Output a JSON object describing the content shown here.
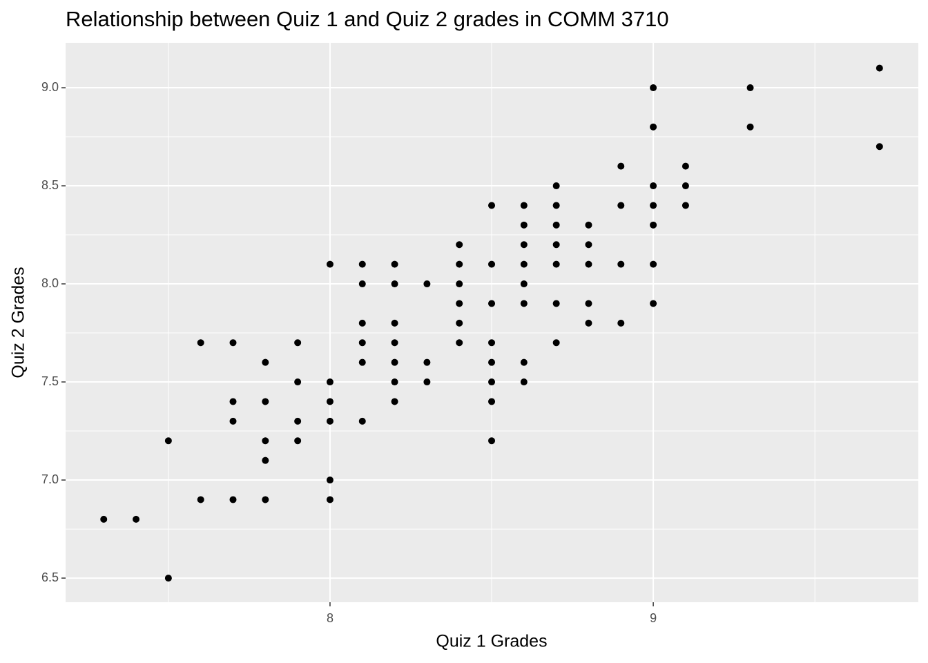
{
  "chart_data": {
    "type": "scatter",
    "title": "Relationship between Quiz 1 and Quiz 2 grades in COMM 3710",
    "x_label": "Quiz 1 Grades",
    "y_label": "Quiz 2 Grades",
    "color": "#000000",
    "grid": true,
    "xlim": [
      7.182,
      9.82
    ],
    "ylim": [
      6.377,
      9.229
    ],
    "xticks": [
      8,
      9
    ],
    "yticks": [
      6.5,
      {
        "value": 7.0,
        "label": "7.0"
      },
      7.5,
      {
        "value": 8.0,
        "label": "8.0"
      },
      8.5,
      {
        "value": 9.0,
        "label": "9.0"
      }
    ],
    "x": [
      7.3,
      7.4,
      7.5,
      7.5,
      7.6,
      7.6,
      7.7,
      7.7,
      7.7,
      7.7,
      7.8,
      7.8,
      7.8,
      7.8,
      7.8,
      7.9,
      7.9,
      7.9,
      7.9,
      8.0,
      8.0,
      8.0,
      8.0,
      8.0,
      8.0,
      8.1,
      8.1,
      8.1,
      8.1,
      8.1,
      8.1,
      8.2,
      8.2,
      8.2,
      8.2,
      8.2,
      8.2,
      8.2,
      8.3,
      8.3,
      8.3,
      8.4,
      8.4,
      8.4,
      8.4,
      8.4,
      8.4,
      8.5,
      8.5,
      8.5,
      8.5,
      8.5,
      8.5,
      8.5,
      8.5,
      8.6,
      8.6,
      8.6,
      8.6,
      8.6,
      8.6,
      8.6,
      8.6,
      8.7,
      8.7,
      8.7,
      8.7,
      8.7,
      8.7,
      8.7,
      8.8,
      8.8,
      8.8,
      8.8,
      8.8,
      8.9,
      8.9,
      8.9,
      8.9,
      9.0,
      9.0,
      9.0,
      9.0,
      9.0,
      9.0,
      9.0,
      9.1,
      9.1,
      9.1,
      9.3,
      9.3,
      9.7,
      9.7
    ],
    "y": [
      6.8,
      6.8,
      7.2,
      6.5,
      7.7,
      6.9,
      7.7,
      7.4,
      7.3,
      6.9,
      7.6,
      7.4,
      7.2,
      7.1,
      6.9,
      7.7,
      7.5,
      7.3,
      7.2,
      8.1,
      7.5,
      7.4,
      7.3,
      7.0,
      6.9,
      8.1,
      8.0,
      7.8,
      7.7,
      7.6,
      7.3,
      8.1,
      8.0,
      7.8,
      7.7,
      7.6,
      7.5,
      7.4,
      8.0,
      7.6,
      7.5,
      8.2,
      8.1,
      8.0,
      7.9,
      7.8,
      7.7,
      8.4,
      8.1,
      7.9,
      7.7,
      7.6,
      7.5,
      7.4,
      7.2,
      8.4,
      8.3,
      8.2,
      8.1,
      8.0,
      7.9,
      7.6,
      7.5,
      8.5,
      8.4,
      8.3,
      8.2,
      8.1,
      7.9,
      7.7,
      8.3,
      8.2,
      8.1,
      7.9,
      7.8,
      8.6,
      8.4,
      8.1,
      7.8,
      9.0,
      8.8,
      8.5,
      8.4,
      8.3,
      8.1,
      7.9,
      8.6,
      8.5,
      8.4,
      9.0,
      8.8,
      9.1,
      8.7
    ]
  }
}
